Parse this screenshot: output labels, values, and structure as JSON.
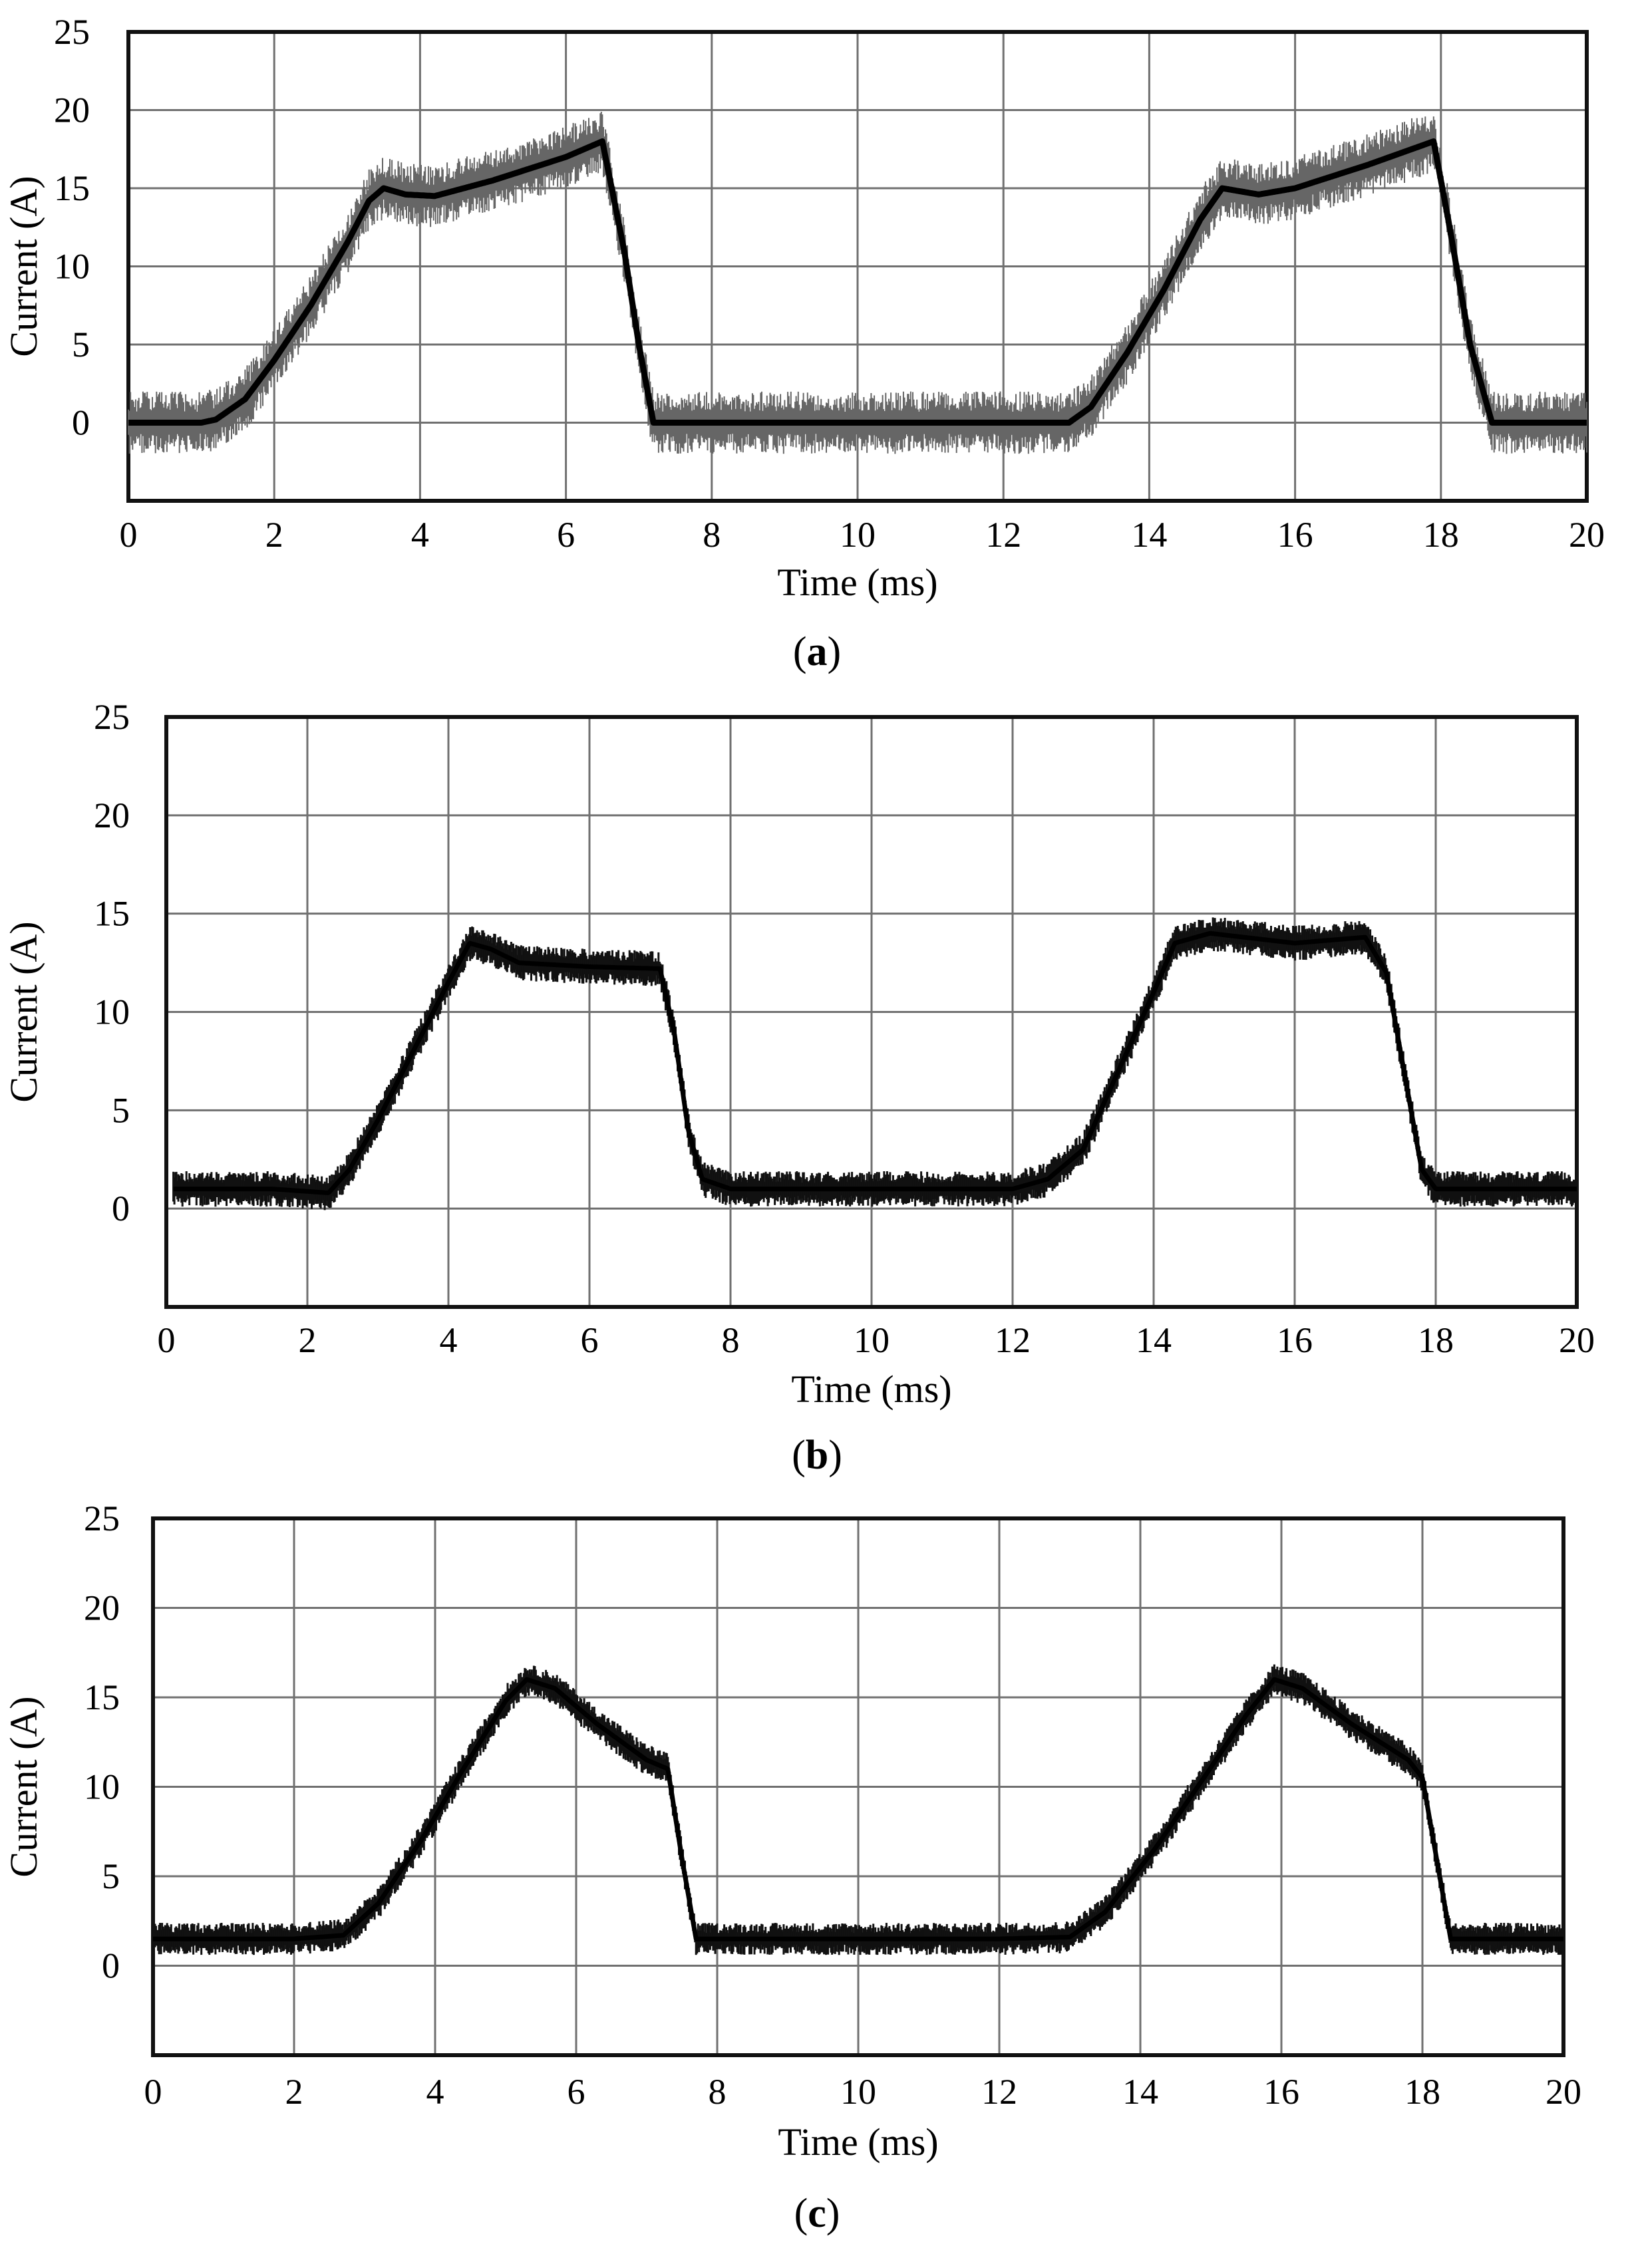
{
  "chart_data": [
    {
      "type": "line",
      "caption_letter": "a",
      "xlabel": "Time (ms)",
      "ylabel": "Current (A)",
      "xlim": [
        0,
        20
      ],
      "ylim": [
        -5,
        25
      ],
      "xticks": [
        0,
        2,
        4,
        6,
        8,
        10,
        12,
        14,
        16,
        18,
        20
      ],
      "xtick_labels": [
        "0",
        "2",
        "4",
        "6",
        "8",
        "10",
        "12",
        "14",
        "16",
        "18",
        "20"
      ],
      "yticks": [
        0,
        5,
        10,
        15,
        20,
        25
      ],
      "ytick_labels": [
        "0",
        "5",
        "10",
        "15",
        "20",
        "25"
      ],
      "grid": true,
      "noise_band": 2.0,
      "series": [
        {
          "x": [
            0,
            1.0,
            1.2,
            1.6,
            2.0,
            2.5,
            3.0,
            3.3,
            3.5,
            3.8,
            4.2,
            5.0,
            6.0,
            6.5,
            6.8,
            7.0,
            7.2,
            8.0,
            10.0,
            12.0,
            12.9,
            13.2,
            13.7,
            14.2,
            14.7,
            15.0,
            15.5,
            16.0,
            17.0,
            17.9,
            18.1,
            18.4,
            18.7,
            20.0
          ],
          "y": [
            0,
            0,
            0.2,
            1.5,
            4,
            7.5,
            11.5,
            14.2,
            15,
            14.6,
            14.5,
            15.5,
            17,
            18,
            11,
            5,
            0,
            0,
            0,
            0,
            0,
            1,
            4.5,
            8.5,
            13,
            15,
            14.6,
            15,
            16.5,
            18,
            13,
            5,
            0,
            0
          ]
        }
      ]
    },
    {
      "type": "line",
      "caption_letter": "b",
      "xlabel": "Time (ms)",
      "ylabel": "Current (A)",
      "xlim": [
        0,
        20
      ],
      "ylim": [
        -5,
        25
      ],
      "xticks": [
        0,
        2,
        4,
        6,
        8,
        10,
        12,
        14,
        16,
        18,
        20
      ],
      "xtick_labels": [
        "0",
        "2",
        "4",
        "6",
        "8",
        "10",
        "12",
        "14",
        "16",
        "18",
        "20"
      ],
      "yticks": [
        0,
        5,
        10,
        15,
        20,
        25
      ],
      "ytick_labels": [
        "0",
        "5",
        "10",
        "15",
        "20",
        "25"
      ],
      "grid": true,
      "noise_band": 0.9,
      "series": [
        {
          "x": [
            0.1,
            1.5,
            2.3,
            2.6,
            3.0,
            3.5,
            4.0,
            4.3,
            4.6,
            5.0,
            6.0,
            7.0,
            7.2,
            7.4,
            7.6,
            8.0,
            10.0,
            12.0,
            12.5,
            13.0,
            13.5,
            14.0,
            14.3,
            14.8,
            16.0,
            17.0,
            17.3,
            17.6,
            17.8,
            18.0,
            20.0
          ],
          "y": [
            1,
            1,
            0.8,
            2,
            4.5,
            8,
            11.5,
            13.5,
            13.2,
            12.5,
            12.3,
            12.2,
            9,
            4,
            1.5,
            1,
            1,
            1,
            1.5,
            3,
            7,
            11,
            13.5,
            14,
            13.5,
            13.8,
            12,
            6,
            2,
            1,
            1
          ]
        }
      ]
    },
    {
      "type": "line",
      "caption_letter": "c",
      "xlabel": "Time (ms)",
      "ylabel": "Current (A)",
      "xlim": [
        0,
        20
      ],
      "ylim": [
        -5,
        25
      ],
      "xticks": [
        0,
        2,
        4,
        6,
        8,
        10,
        12,
        14,
        16,
        18,
        20
      ],
      "xtick_labels": [
        "0",
        "2",
        "4",
        "6",
        "8",
        "10",
        "12",
        "14",
        "16",
        "18",
        "20"
      ],
      "yticks": [
        0,
        5,
        10,
        15,
        20,
        25
      ],
      "ytick_labels": [
        "0",
        "5",
        "10",
        "15",
        "20",
        "25"
      ],
      "grid": true,
      "noise_band": 0.9,
      "series": [
        {
          "x": [
            0,
            2.0,
            2.7,
            3.2,
            3.8,
            4.4,
            5.0,
            5.3,
            5.7,
            6.3,
            7.0,
            7.3,
            7.5,
            7.7,
            8.0,
            10.0,
            12.0,
            13.0,
            13.5,
            14.2,
            14.9,
            15.5,
            15.9,
            16.3,
            17.0,
            17.8,
            18.0,
            18.2,
            18.4,
            18.6,
            20.0
          ],
          "y": [
            1.5,
            1.5,
            1.7,
            3.5,
            7,
            11,
            14.8,
            16,
            15.5,
            13.5,
            11.5,
            11,
            6,
            1.5,
            1.5,
            1.5,
            1.5,
            1.6,
            3,
            6.5,
            10.5,
            14,
            16,
            15.5,
            13.5,
            11.5,
            10.5,
            6,
            1.5,
            1.5,
            1.5
          ]
        }
      ]
    }
  ]
}
